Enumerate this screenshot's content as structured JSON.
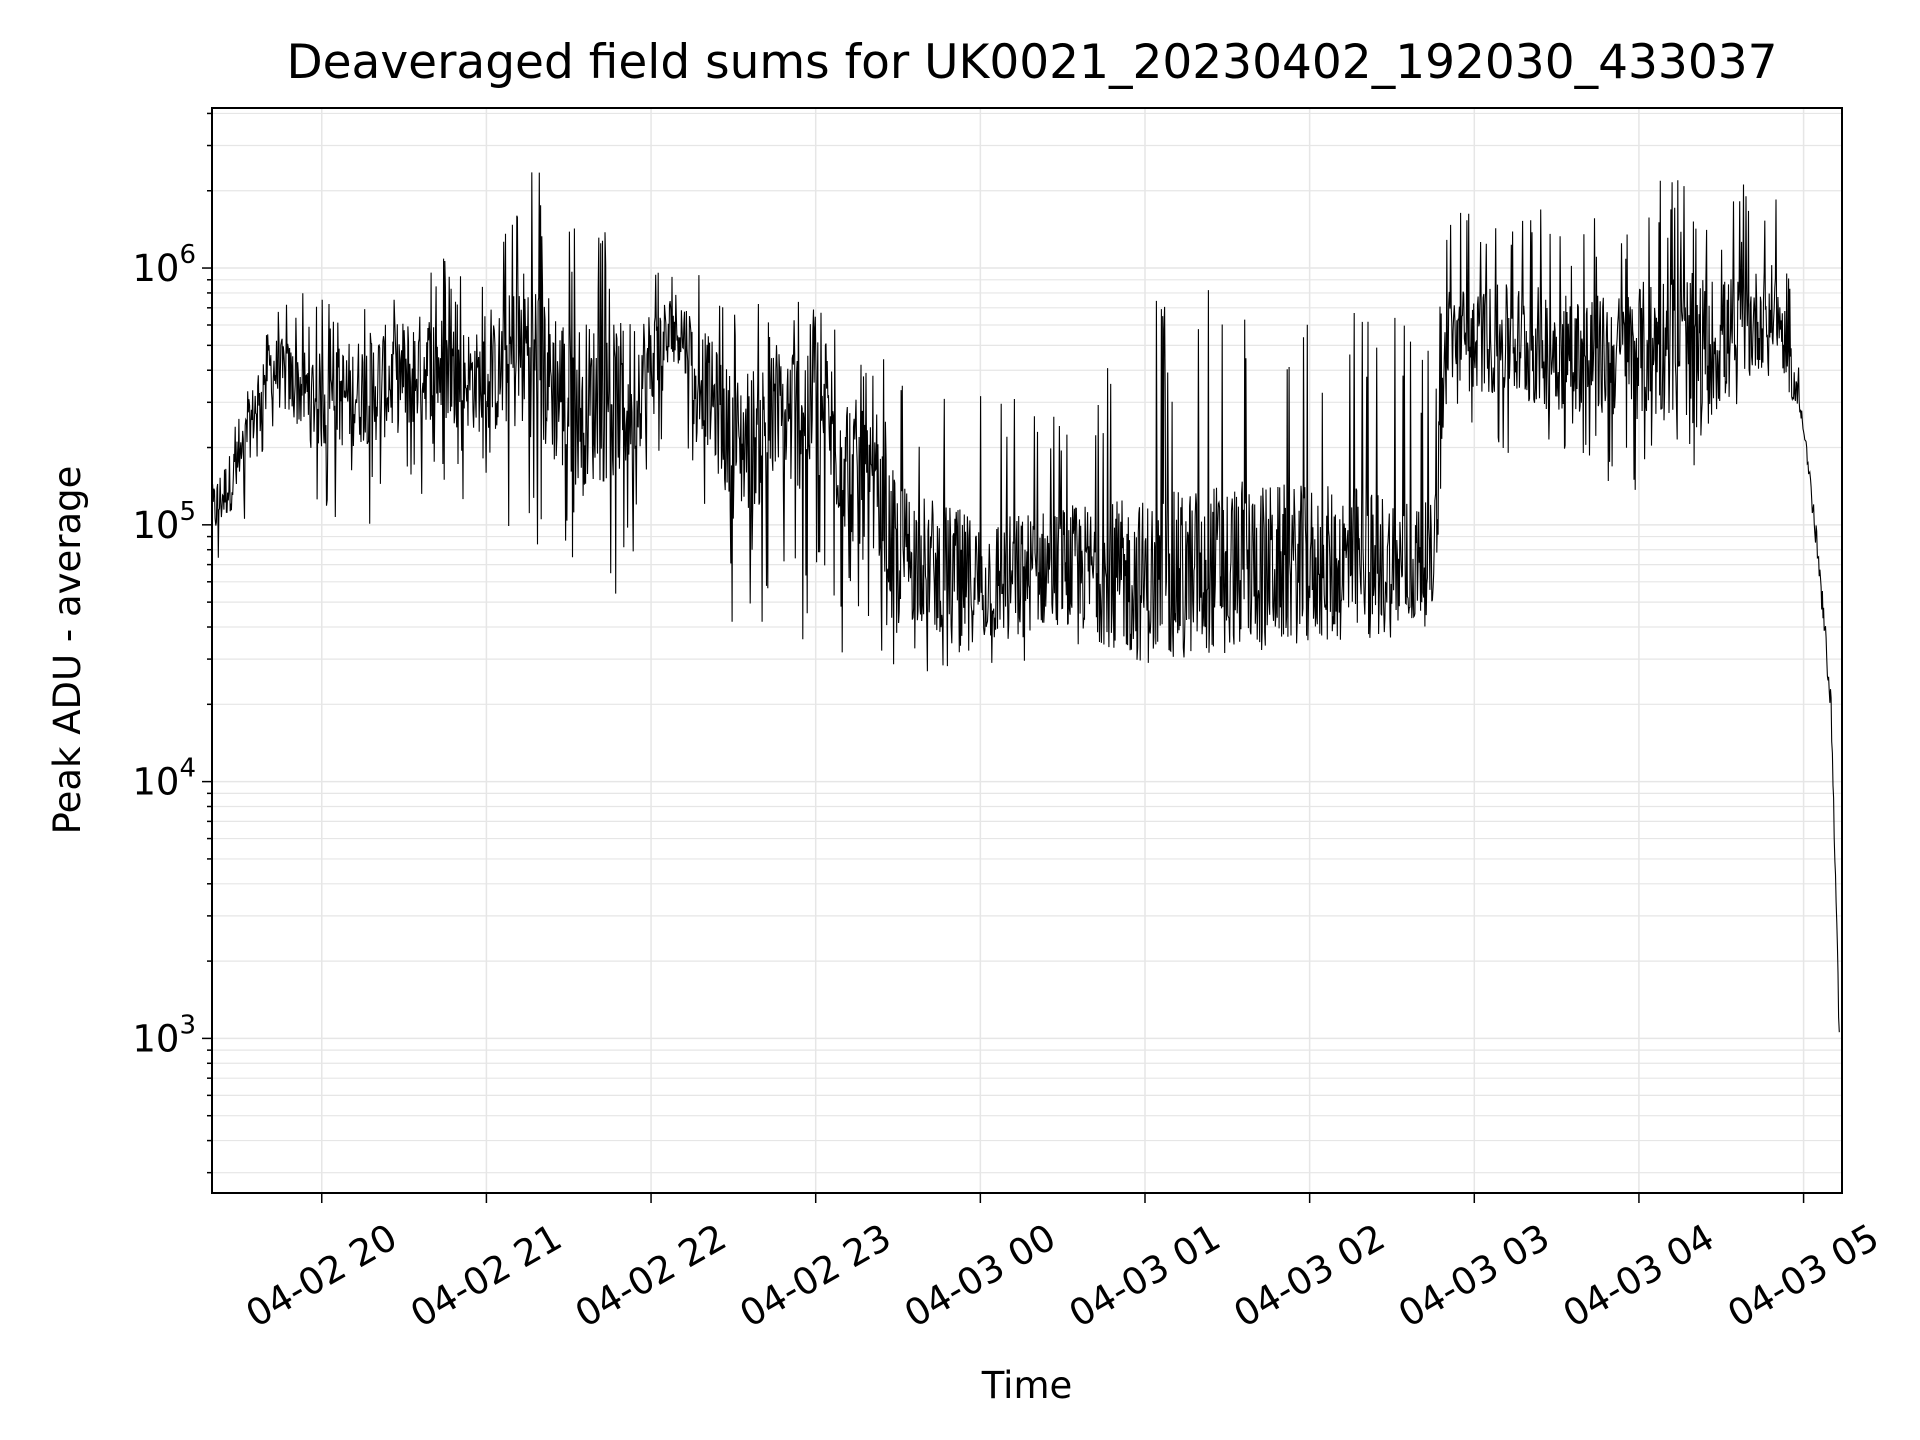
{
  "chart_data": {
    "type": "line",
    "title": "Deaveraged field sums for UK0021_20230402_192030_433037",
    "xlabel": "Time",
    "ylabel": "Peak ADU - average",
    "y_scale": "log",
    "ylim": [
      250,
      4200000
    ],
    "xlim": [
      "2023-04-02 19:20",
      "2023-04-03 05:14"
    ],
    "grid": true,
    "line_color": "#000000",
    "grid_color": "#e6e6e6",
    "x_ticks": [
      {
        "value": "2023-04-02 20:00",
        "label": "04-02 20"
      },
      {
        "value": "2023-04-02 21:00",
        "label": "04-02 21"
      },
      {
        "value": "2023-04-02 22:00",
        "label": "04-02 22"
      },
      {
        "value": "2023-04-02 23:00",
        "label": "04-02 23"
      },
      {
        "value": "2023-04-03 00:00",
        "label": "04-03 00"
      },
      {
        "value": "2023-04-03 01:00",
        "label": "04-03 01"
      },
      {
        "value": "2023-04-03 02:00",
        "label": "04-03 02"
      },
      {
        "value": "2023-04-03 03:00",
        "label": "04-03 03"
      },
      {
        "value": "2023-04-03 04:00",
        "label": "04-03 04"
      },
      {
        "value": "2023-04-03 05:00",
        "label": "04-03 05"
      }
    ],
    "y_ticks": [
      {
        "value": 1000,
        "base": "10",
        "exp": "3"
      },
      {
        "value": 10000,
        "base": "10",
        "exp": "4"
      },
      {
        "value": 100000,
        "base": "10",
        "exp": "5"
      },
      {
        "value": 1000000,
        "base": "10",
        "exp": "6"
      }
    ],
    "series": [
      {
        "envelope": [
          {
            "t": "2023-04-02 19:20",
            "median": 110000,
            "low": 60000,
            "high": 190000
          },
          {
            "t": "2023-04-02 19:30",
            "median": 170000,
            "low": 80000,
            "high": 280000
          },
          {
            "t": "2023-04-02 19:40",
            "median": 420000,
            "low": 220000,
            "high": 800000
          },
          {
            "t": "2023-04-02 20:00",
            "median": 300000,
            "low": 110000,
            "high": 800000
          },
          {
            "t": "2023-04-02 20:20",
            "median": 350000,
            "low": 90000,
            "high": 900000
          },
          {
            "t": "2023-04-02 20:40",
            "median": 420000,
            "low": 130000,
            "high": 1200000
          },
          {
            "t": "2023-04-02 21:00",
            "median": 350000,
            "low": 120000,
            "high": 900000
          },
          {
            "t": "2023-04-02 21:15",
            "median": 500000,
            "low": 80000,
            "high": 2700000
          },
          {
            "t": "2023-04-02 21:30",
            "median": 300000,
            "low": 70000,
            "high": 2000000
          },
          {
            "t": "2023-04-02 21:50",
            "median": 300000,
            "low": 50000,
            "high": 1200000
          },
          {
            "t": "2023-04-02 22:10",
            "median": 600000,
            "low": 280000,
            "high": 1300000
          },
          {
            "t": "2023-04-02 22:30",
            "median": 200000,
            "low": 40000,
            "high": 700000
          },
          {
            "t": "2023-04-02 23:00",
            "median": 300000,
            "low": 30000,
            "high": 800000
          },
          {
            "t": "2023-04-02 23:30",
            "median": 80000,
            "low": 25000,
            "high": 400000
          },
          {
            "t": "2023-04-03 00:00",
            "median": 60000,
            "low": 28000,
            "high": 350000
          },
          {
            "t": "2023-04-03 00:30",
            "median": 70000,
            "low": 28000,
            "high": 300000
          },
          {
            "t": "2023-04-03 01:00",
            "median": 60000,
            "low": 28000,
            "high": 800000
          },
          {
            "t": "2023-04-03 01:30",
            "median": 70000,
            "low": 30000,
            "high": 900000
          },
          {
            "t": "2023-04-03 02:00",
            "median": 70000,
            "low": 35000,
            "high": 800000
          },
          {
            "t": "2023-04-03 02:20",
            "median": 70000,
            "low": 40000,
            "high": 1000000
          },
          {
            "t": "2023-04-03 02:45",
            "median": 70000,
            "low": 45000,
            "high": 500000
          },
          {
            "t": "2023-04-03 02:50",
            "median": 550000,
            "low": 300000,
            "high": 2000000
          },
          {
            "t": "2023-04-03 03:20",
            "median": 500000,
            "low": 150000,
            "high": 1800000
          },
          {
            "t": "2023-04-03 03:50",
            "median": 450000,
            "low": 140000,
            "high": 1600000
          },
          {
            "t": "2023-04-03 04:10",
            "median": 500000,
            "low": 120000,
            "high": 2500000
          },
          {
            "t": "2023-04-03 04:30",
            "median": 500000,
            "low": 130000,
            "high": 2000000
          },
          {
            "t": "2023-04-03 04:50",
            "median": 700000,
            "low": 400000,
            "high": 2300000
          },
          {
            "t": "2023-04-03 05:00",
            "median": 250000,
            "low": 200000,
            "high": 300000
          },
          {
            "t": "2023-04-03 05:05",
            "median": 80000,
            "low": 60000,
            "high": 100000
          },
          {
            "t": "2023-04-03 05:08",
            "median": 35000,
            "low": 25000,
            "high": 45000
          },
          {
            "t": "2023-04-03 05:10",
            "median": 20000,
            "low": 16000,
            "high": 24000
          },
          {
            "t": "2023-04-03 05:12",
            "median": 3000,
            "low": 2500,
            "high": 3500
          },
          {
            "t": "2023-04-03 05:13",
            "median": 1000,
            "low": 700,
            "high": 1200
          }
        ]
      }
    ]
  }
}
